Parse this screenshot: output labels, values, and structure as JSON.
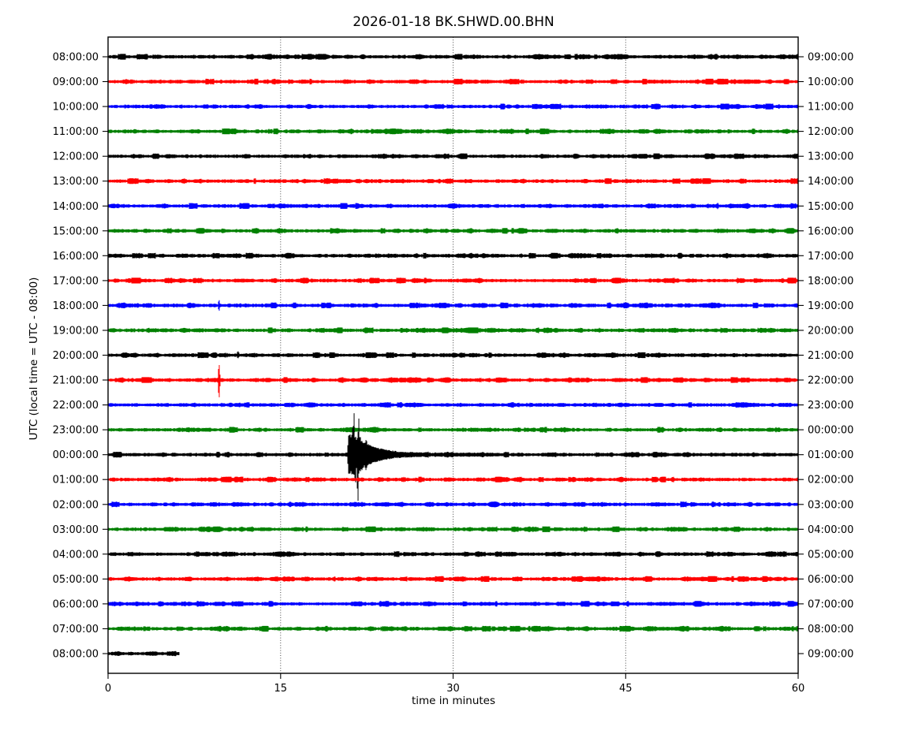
{
  "figure": {
    "title": "2026-01-18 BK.SHWD.00.BHN",
    "xlabel": "time in minutes",
    "ylabel": "UTC (local time = UTC - 08:00)"
  },
  "chart_data": {
    "type": "line",
    "subtype": "seismogram-helicorder-dayplot",
    "title": "2026-01-18 BK.SHWD.00.BHN",
    "xlabel": "time in minutes",
    "ylabel": "UTC (local time = UTC - 08:00)",
    "xlim": [
      0,
      60
    ],
    "x_ticks": [
      0,
      15,
      30,
      45,
      60
    ],
    "grid": {
      "vertical_minutes": [
        15,
        30,
        45
      ],
      "style": "dotted",
      "on": true
    },
    "row_interval_minutes": 60,
    "legend": "none",
    "color_cycle": [
      "#000000",
      "#ff0000",
      "#0000ff",
      "#008000"
    ],
    "rows": [
      {
        "left": "08:00:00",
        "right": "09:00:00",
        "data_end_minute": 60
      },
      {
        "left": "09:00:00",
        "right": "10:00:00",
        "data_end_minute": 60
      },
      {
        "left": "10:00:00",
        "right": "11:00:00",
        "data_end_minute": 60
      },
      {
        "left": "11:00:00",
        "right": "12:00:00",
        "data_end_minute": 60
      },
      {
        "left": "12:00:00",
        "right": "13:00:00",
        "data_end_minute": 60
      },
      {
        "left": "13:00:00",
        "right": "14:00:00",
        "data_end_minute": 60
      },
      {
        "left": "14:00:00",
        "right": "15:00:00",
        "data_end_minute": 60
      },
      {
        "left": "15:00:00",
        "right": "16:00:00",
        "data_end_minute": 60
      },
      {
        "left": "16:00:00",
        "right": "17:00:00",
        "data_end_minute": 60
      },
      {
        "left": "17:00:00",
        "right": "18:00:00",
        "data_end_minute": 60
      },
      {
        "left": "18:00:00",
        "right": "19:00:00",
        "data_end_minute": 60
      },
      {
        "left": "19:00:00",
        "right": "20:00:00",
        "data_end_minute": 60
      },
      {
        "left": "20:00:00",
        "right": "21:00:00",
        "data_end_minute": 60
      },
      {
        "left": "21:00:00",
        "right": "22:00:00",
        "data_end_minute": 60
      },
      {
        "left": "22:00:00",
        "right": "23:00:00",
        "data_end_minute": 60
      },
      {
        "left": "23:00:00",
        "right": "00:00:00",
        "data_end_minute": 60
      },
      {
        "left": "00:00:00",
        "right": "01:00:00",
        "data_end_minute": 60
      },
      {
        "left": "01:00:00",
        "right": "02:00:00",
        "data_end_minute": 60
      },
      {
        "left": "02:00:00",
        "right": "03:00:00",
        "data_end_minute": 60
      },
      {
        "left": "03:00:00",
        "right": "04:00:00",
        "data_end_minute": 60
      },
      {
        "left": "04:00:00",
        "right": "05:00:00",
        "data_end_minute": 60
      },
      {
        "left": "05:00:00",
        "right": "06:00:00",
        "data_end_minute": 60
      },
      {
        "left": "06:00:00",
        "right": "07:00:00",
        "data_end_minute": 60
      },
      {
        "left": "07:00:00",
        "right": "08:00:00",
        "data_end_minute": 60
      },
      {
        "left": "08:00:00",
        "right": "09:00:00",
        "data_end_minute": 6.2
      }
    ],
    "events": [
      {
        "row_index": 6,
        "kind": "minor-burst",
        "minute": 53.0,
        "peak_up": 4,
        "peak_down": 4
      },
      {
        "row_index": 10,
        "kind": "minor-spike",
        "minute": 9.65,
        "peak_up": 7,
        "peak_down": 7
      },
      {
        "row_index": 12,
        "kind": "minor-burst",
        "minute": 11.3,
        "peak_up": 5,
        "peak_down": 4
      },
      {
        "row_index": 13,
        "kind": "spike",
        "minute": 9.65,
        "peak_up": 20,
        "peak_down": 23
      },
      {
        "row_index": 16,
        "kind": "earthquake",
        "minute": 21.38,
        "peak_up": 54,
        "peak_down": 61,
        "burst_start_minute": 20.8,
        "burst_end_minute": 22.6,
        "coda_end_minute": 27.5,
        "tail_end_minute": 33.5,
        "subspikes": [
          {
            "minute": 21.25,
            "up": 34,
            "down": 22
          },
          {
            "minute": 21.38,
            "up": 54,
            "down": 26
          },
          {
            "minute": 21.5,
            "up": 26,
            "down": 40
          },
          {
            "minute": 21.72,
            "up": 30,
            "down": 61
          },
          {
            "minute": 21.8,
            "up": 46,
            "down": 24
          },
          {
            "minute": 21.95,
            "up": 18,
            "down": 16
          },
          {
            "minute": 22.2,
            "up": 13,
            "down": 12
          }
        ]
      },
      {
        "row_index": 16,
        "kind": "minor-burst",
        "minute": 32.6,
        "peak_up": 3.5,
        "peak_down": 3.5
      }
    ]
  }
}
